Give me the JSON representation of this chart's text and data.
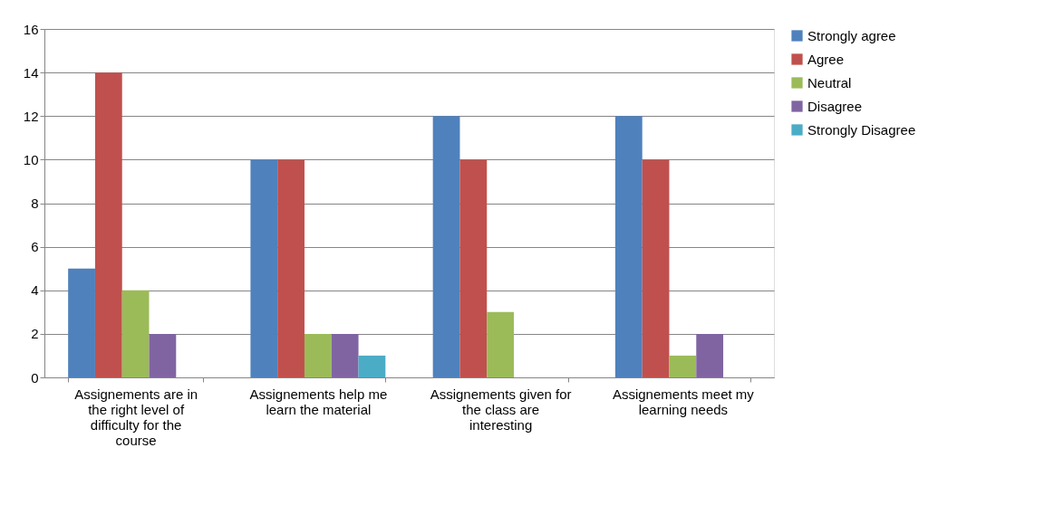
{
  "chart_data": {
    "type": "bar",
    "categories": [
      "Assignements are in the right level of difficulty for the course",
      "Assignements help me learn the material",
      "Assignements given for the class are interesting",
      "Assignements meet my learning needs"
    ],
    "series": [
      {
        "name": "Strongly agree",
        "color": "#4f81bd",
        "values": [
          5,
          10,
          12,
          12
        ]
      },
      {
        "name": "Agree",
        "color": "#c0504d",
        "values": [
          14,
          10,
          10,
          10
        ]
      },
      {
        "name": "Neutral",
        "color": "#9bbb59",
        "values": [
          4,
          2,
          3,
          1
        ]
      },
      {
        "name": "Disagree",
        "color": "#8064a2",
        "values": [
          2,
          2,
          0,
          2
        ]
      },
      {
        "name": "Strongly Disagree",
        "color": "#4bacc6",
        "values": [
          0,
          1,
          0,
          0
        ]
      }
    ],
    "ylim": [
      0,
      16
    ],
    "yticks": [
      0,
      2,
      4,
      6,
      8,
      10,
      12,
      14,
      16
    ],
    "grid": "y",
    "legend": "right"
  }
}
